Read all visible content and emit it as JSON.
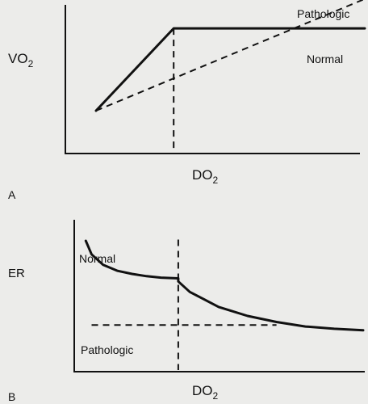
{
  "chart_data": [
    {
      "panel_label": "A",
      "type": "line",
      "xlabel": "DO",
      "xlabel_sub": "2",
      "ylabel": "VO",
      "ylabel_sub": "2",
      "grid": false,
      "critical_x": 0.36,
      "series": [
        {
          "name": "Normal",
          "style": "solid",
          "x": [
            0.1,
            0.36,
            1.0
          ],
          "y": [
            0.28,
            0.84,
            0.84
          ]
        },
        {
          "name": "Pathologic",
          "style": "dashed",
          "x": [
            0.1,
            1.0
          ],
          "y": [
            0.28,
            1.04
          ]
        }
      ]
    },
    {
      "panel_label": "B",
      "type": "line",
      "xlabel": "DO",
      "xlabel_sub": "2",
      "ylabel": "ER",
      "grid": false,
      "critical_x": 0.36,
      "series": [
        {
          "name": "Normal",
          "style": "solid",
          "x": [
            0.04,
            0.06,
            0.1,
            0.15,
            0.2,
            0.25,
            0.3,
            0.36,
            0.36,
            0.4,
            0.5,
            0.6,
            0.7,
            0.8,
            0.9,
            1.0
          ],
          "y": [
            0.86,
            0.77,
            0.7,
            0.66,
            0.64,
            0.625,
            0.615,
            0.61,
            0.59,
            0.52,
            0.42,
            0.36,
            0.32,
            0.29,
            0.275,
            0.265
          ]
        },
        {
          "name": "Pathologic",
          "style": "dashed",
          "x": [
            0.06,
            0.7
          ],
          "y": [
            0.3,
            0.3
          ]
        }
      ]
    }
  ]
}
